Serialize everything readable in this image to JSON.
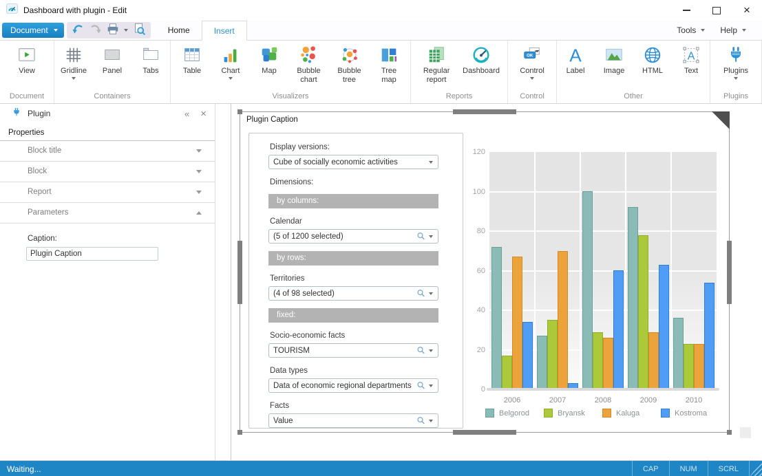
{
  "window": {
    "title": "Dashboard with plugin - Edit",
    "controls": [
      {
        "name": "minimize"
      },
      {
        "name": "maximize"
      },
      {
        "name": "close"
      }
    ]
  },
  "menu": {
    "document_label": "Document",
    "quick_access": [
      "undo-icon",
      "redo-icon",
      "print-icon",
      "print-preview-icon"
    ],
    "tabs": [
      {
        "label": "Home",
        "active": false
      },
      {
        "label": "Insert",
        "active": true
      }
    ],
    "tools_label": "Tools",
    "help_label": "Help"
  },
  "ribbon": {
    "groups": [
      {
        "label": "Document",
        "min_width": 78,
        "items": [
          {
            "label": "View",
            "icon": "view-icon",
            "caret": false
          }
        ]
      },
      {
        "label": "Containers",
        "min_width": 168,
        "items": [
          {
            "label": "Gridline",
            "icon": "gridline-icon",
            "caret": true
          },
          {
            "label": "Panel",
            "icon": "panel-icon",
            "caret": false
          },
          {
            "label": "Tabs",
            "icon": "tabs-icon",
            "caret": false
          }
        ]
      },
      {
        "label": "Visualizers",
        "min_width": 330,
        "items": [
          {
            "label": "Table",
            "icon": "table-icon",
            "caret": false
          },
          {
            "label": "Chart",
            "icon": "chart-icon",
            "caret": true
          },
          {
            "label": "Map",
            "icon": "map-icon",
            "caret": false
          },
          {
            "label": "Bubble chart",
            "icon": "bubble-chart-icon",
            "caret": false
          },
          {
            "label": "Bubble tree",
            "icon": "bubble-tree-icon",
            "caret": false
          },
          {
            "label": "Tree map",
            "icon": "tree-map-icon",
            "caret": false
          }
        ]
      },
      {
        "label": "Reports",
        "min_width": 140,
        "items": [
          {
            "label": "Regular report",
            "icon": "regular-report-icon",
            "caret": false
          },
          {
            "label": "Dashboard",
            "icon": "dashboard-icon",
            "caret": false
          }
        ]
      },
      {
        "label": "Control",
        "min_width": 70,
        "items": [
          {
            "label": "Control",
            "icon": "control-icon",
            "caret": true
          }
        ]
      },
      {
        "label": "Other",
        "min_width": 216,
        "items": [
          {
            "label": "Label",
            "icon": "label-icon",
            "caret": false
          },
          {
            "label": "Image",
            "icon": "image-icon",
            "caret": false
          },
          {
            "label": "HTML",
            "icon": "html-icon",
            "caret": false
          },
          {
            "label": "Text",
            "icon": "text-icon",
            "caret": false
          }
        ]
      },
      {
        "label": "Plugins",
        "min_width": 74,
        "items": [
          {
            "label": "Plugins",
            "icon": "plugins-icon",
            "caret": true
          }
        ]
      }
    ]
  },
  "sidebar": {
    "icon": "plug-icon",
    "title": "Plugin",
    "collapse_glyph": "«",
    "close_glyph": "×",
    "properties_label": "Properties",
    "sections": [
      {
        "label": "Block title",
        "expanded": false
      },
      {
        "label": "Block",
        "expanded": false
      },
      {
        "label": "Report",
        "expanded": false
      },
      {
        "label": "Parameters",
        "expanded": true
      }
    ],
    "caption_label": "Caption:",
    "caption_value": "Plugin Caption"
  },
  "canvas": {
    "block_title": "Plugin Caption",
    "form": {
      "fields": [
        {
          "type": "label",
          "text": "Display versions:"
        },
        {
          "type": "combo",
          "value": "Cube of socially economic activities",
          "search": false
        },
        {
          "type": "label",
          "text": "Dimensions:"
        },
        {
          "type": "band",
          "text": "by columns:"
        },
        {
          "type": "label",
          "text": "Calendar"
        },
        {
          "type": "combo",
          "value": "(5 of 1200 selected)",
          "search": true
        },
        {
          "type": "band",
          "text": "by rows:"
        },
        {
          "type": "label",
          "text": "Territories"
        },
        {
          "type": "combo",
          "value": "(4 of 98 selected)",
          "search": true
        },
        {
          "type": "band",
          "text": "fixed:"
        },
        {
          "type": "label",
          "text": "Socio-economic facts"
        },
        {
          "type": "combo",
          "value": "TOURISM",
          "search": true
        },
        {
          "type": "label",
          "text": "Data types"
        },
        {
          "type": "combo",
          "value": "Data of economic regional departments",
          "search": true
        },
        {
          "type": "label",
          "text": "Facts"
        },
        {
          "type": "combo",
          "value": "Value",
          "search": true
        }
      ]
    }
  },
  "chart_data": {
    "type": "bar",
    "title": "",
    "categories": [
      "2006",
      "2007",
      "2008",
      "2009",
      "2010"
    ],
    "series": [
      {
        "name": "Belgorod",
        "color": "#8abbb6",
        "border": "#68a09b",
        "values": [
          72,
          27,
          100,
          92,
          36
        ]
      },
      {
        "name": "Bryansk",
        "color": "#abc938",
        "border": "#92ae27",
        "values": [
          17,
          35,
          29,
          78,
          23
        ]
      },
      {
        "name": "Kaluga",
        "color": "#eca33b",
        "border": "#d08a26",
        "values": [
          67,
          70,
          26,
          29,
          23
        ]
      },
      {
        "name": "Kostroma",
        "color": "#4f9df5",
        "border": "#2e7fd3",
        "values": [
          34,
          3,
          60,
          63,
          54
        ]
      }
    ],
    "ylim": [
      0,
      120
    ],
    "yticks": [
      0,
      20,
      40,
      60,
      80,
      100,
      120
    ],
    "grid": true,
    "legend_position": "bottom"
  },
  "statusbar": {
    "message": "Waiting...",
    "indicators": [
      "CAP",
      "NUM",
      "SCRL"
    ]
  }
}
